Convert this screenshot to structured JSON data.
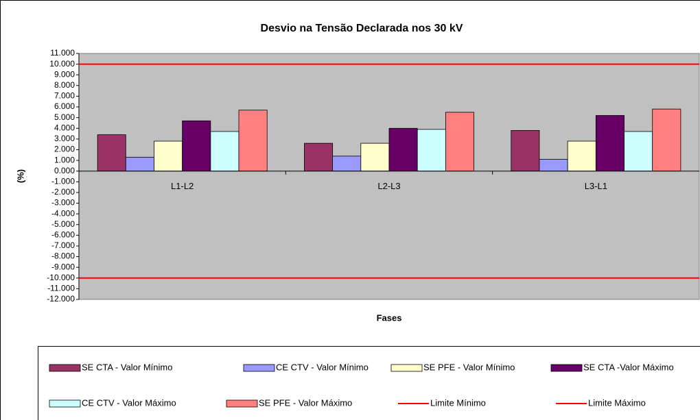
{
  "chart_data": {
    "type": "bar",
    "title": "Desvio na Tensão Declarada nos 30 kV",
    "x_label": "Fases",
    "y_label": "(%)",
    "categories": [
      "L1-L2",
      "L2-L3",
      "L3-L1"
    ],
    "ylim": [
      -12,
      11
    ],
    "yticks": [
      {
        "value": -12,
        "label": "-12.000"
      },
      {
        "value": -11,
        "label": "-11.000"
      },
      {
        "value": -10,
        "label": "-10.000"
      },
      {
        "value": -9,
        "label": "-9.000"
      },
      {
        "value": -8,
        "label": "-8.000"
      },
      {
        "value": -7,
        "label": "-7.000"
      },
      {
        "value": -6,
        "label": "-6.000"
      },
      {
        "value": -5,
        "label": "-5.000"
      },
      {
        "value": -4,
        "label": "-4.000"
      },
      {
        "value": -3,
        "label": "-3.000"
      },
      {
        "value": -2,
        "label": "-2.000"
      },
      {
        "value": -1,
        "label": "-1.000"
      },
      {
        "value": 0,
        "label": "0.000"
      },
      {
        "value": 1,
        "label": "1.000"
      },
      {
        "value": 2,
        "label": "2.000"
      },
      {
        "value": 3,
        "label": "3.000"
      },
      {
        "value": 4,
        "label": "4.000"
      },
      {
        "value": 5,
        "label": "5.000"
      },
      {
        "value": 6,
        "label": "6.000"
      },
      {
        "value": 7,
        "label": "7.000"
      },
      {
        "value": 8,
        "label": "8.000"
      },
      {
        "value": 9,
        "label": "9.000"
      },
      {
        "value": 10,
        "label": "10.000"
      },
      {
        "value": 11,
        "label": "11.000"
      }
    ],
    "grid": false,
    "legend": "bottom",
    "series": [
      {
        "name": "SE CTA - Valor Mínimo",
        "color": "#993366",
        "values": [
          3.4,
          2.6,
          3.8
        ]
      },
      {
        "name": "CE CTV - Valor Mínimo",
        "color": "#9999ff",
        "values": [
          1.3,
          1.4,
          1.1
        ]
      },
      {
        "name": "SE PFE - Valor Mínimo",
        "color": "#ffffcc",
        "values": [
          2.8,
          2.6,
          2.8
        ]
      },
      {
        "name": "SE CTA -Valor Máximo",
        "color": "#660066",
        "values": [
          4.7,
          4.0,
          5.2
        ]
      },
      {
        "name": "CE CTV - Valor Máximo",
        "color": "#ccffff",
        "values": [
          3.7,
          3.9,
          3.7
        ]
      },
      {
        "name": "SE PFE - Valor Máximo",
        "color": "#ff8080",
        "values": [
          5.7,
          5.5,
          5.8
        ]
      },
      {
        "name": "Limite Mínimo",
        "color": "#ff0000",
        "type": "line",
        "values": [
          -10,
          -10,
          -10
        ]
      },
      {
        "name": "Limite Máximo",
        "color": "#ff0000",
        "type": "line",
        "values": [
          10,
          10,
          10
        ]
      }
    ]
  }
}
